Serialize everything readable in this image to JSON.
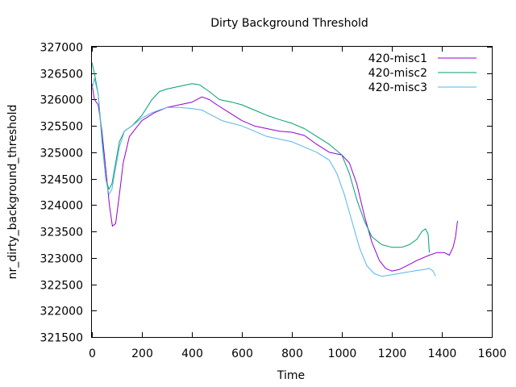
{
  "chart_data": {
    "type": "line",
    "title": "Dirty Background Threshold",
    "xlabel": "Time",
    "ylabel": "nr_dirty_background_threshold",
    "xlim": [
      0,
      1600
    ],
    "ylim": [
      321500,
      327000
    ],
    "xticks": [
      0,
      200,
      400,
      600,
      800,
      1000,
      1200,
      1400,
      1600
    ],
    "yticks": [
      321500,
      322000,
      322500,
      323000,
      323500,
      324000,
      324500,
      325000,
      325500,
      326000,
      326500,
      327000
    ],
    "grid": false,
    "legend_position": "top-right",
    "series": [
      {
        "name": "420-misc1",
        "color": "#9400d3",
        "points": [
          [
            0,
            326300
          ],
          [
            10,
            326000
          ],
          [
            25,
            325900
          ],
          [
            40,
            325400
          ],
          [
            55,
            324700
          ],
          [
            70,
            324000
          ],
          [
            82,
            323600
          ],
          [
            95,
            323650
          ],
          [
            110,
            324200
          ],
          [
            125,
            324800
          ],
          [
            150,
            325300
          ],
          [
            200,
            325600
          ],
          [
            250,
            325750
          ],
          [
            300,
            325850
          ],
          [
            350,
            325900
          ],
          [
            400,
            325950
          ],
          [
            440,
            326050
          ],
          [
            470,
            326000
          ],
          [
            500,
            325900
          ],
          [
            550,
            325750
          ],
          [
            600,
            325600
          ],
          [
            650,
            325500
          ],
          [
            700,
            325450
          ],
          [
            750,
            325400
          ],
          [
            800,
            325380
          ],
          [
            850,
            325320
          ],
          [
            900,
            325150
          ],
          [
            950,
            325000
          ],
          [
            1000,
            324950
          ],
          [
            1030,
            324800
          ],
          [
            1060,
            324400
          ],
          [
            1090,
            323800
          ],
          [
            1120,
            323300
          ],
          [
            1150,
            322950
          ],
          [
            1175,
            322800
          ],
          [
            1200,
            322750
          ],
          [
            1230,
            322780
          ],
          [
            1260,
            322850
          ],
          [
            1300,
            322950
          ],
          [
            1350,
            323050
          ],
          [
            1380,
            323100
          ],
          [
            1410,
            323100
          ],
          [
            1430,
            323050
          ],
          [
            1445,
            323200
          ],
          [
            1455,
            323400
          ],
          [
            1463,
            323700
          ]
        ]
      },
      {
        "name": "420-misc2",
        "color": "#009e73",
        "points": [
          [
            0,
            326700
          ],
          [
            10,
            326500
          ],
          [
            25,
            326100
          ],
          [
            40,
            325300
          ],
          [
            55,
            324500
          ],
          [
            68,
            324300
          ],
          [
            80,
            324400
          ],
          [
            95,
            324800
          ],
          [
            110,
            325200
          ],
          [
            130,
            325400
          ],
          [
            160,
            325500
          ],
          [
            200,
            325700
          ],
          [
            240,
            326000
          ],
          [
            270,
            326150
          ],
          [
            300,
            326200
          ],
          [
            350,
            326250
          ],
          [
            400,
            326300
          ],
          [
            430,
            326280
          ],
          [
            470,
            326150
          ],
          [
            510,
            326000
          ],
          [
            560,
            325950
          ],
          [
            600,
            325900
          ],
          [
            650,
            325800
          ],
          [
            700,
            325700
          ],
          [
            750,
            325620
          ],
          [
            800,
            325550
          ],
          [
            850,
            325450
          ],
          [
            900,
            325300
          ],
          [
            950,
            325150
          ],
          [
            1000,
            324950
          ],
          [
            1030,
            324600
          ],
          [
            1060,
            324100
          ],
          [
            1090,
            323700
          ],
          [
            1120,
            323400
          ],
          [
            1160,
            323250
          ],
          [
            1200,
            323200
          ],
          [
            1240,
            323200
          ],
          [
            1270,
            323250
          ],
          [
            1300,
            323350
          ],
          [
            1320,
            323500
          ],
          [
            1335,
            323550
          ],
          [
            1345,
            323450
          ],
          [
            1350,
            323100
          ]
        ]
      },
      {
        "name": "420-misc3",
        "color": "#56b4e9",
        "points": [
          [
            0,
            326200
          ],
          [
            10,
            326400
          ],
          [
            25,
            326100
          ],
          [
            40,
            325200
          ],
          [
            55,
            324500
          ],
          [
            68,
            324200
          ],
          [
            80,
            324300
          ],
          [
            95,
            324700
          ],
          [
            110,
            325100
          ],
          [
            130,
            325400
          ],
          [
            160,
            325500
          ],
          [
            200,
            325650
          ],
          [
            240,
            325750
          ],
          [
            270,
            325800
          ],
          [
            300,
            325850
          ],
          [
            350,
            325850
          ],
          [
            400,
            325830
          ],
          [
            440,
            325800
          ],
          [
            480,
            325700
          ],
          [
            520,
            325600
          ],
          [
            560,
            325550
          ],
          [
            600,
            325500
          ],
          [
            650,
            325400
          ],
          [
            700,
            325300
          ],
          [
            750,
            325250
          ],
          [
            800,
            325200
          ],
          [
            850,
            325100
          ],
          [
            900,
            325000
          ],
          [
            950,
            324850
          ],
          [
            980,
            324600
          ],
          [
            1010,
            324200
          ],
          [
            1040,
            323700
          ],
          [
            1070,
            323200
          ],
          [
            1100,
            322850
          ],
          [
            1130,
            322700
          ],
          [
            1160,
            322650
          ],
          [
            1200,
            322680
          ],
          [
            1250,
            322720
          ],
          [
            1300,
            322760
          ],
          [
            1330,
            322780
          ],
          [
            1350,
            322800
          ],
          [
            1365,
            322750
          ],
          [
            1375,
            322650
          ]
        ]
      }
    ]
  }
}
